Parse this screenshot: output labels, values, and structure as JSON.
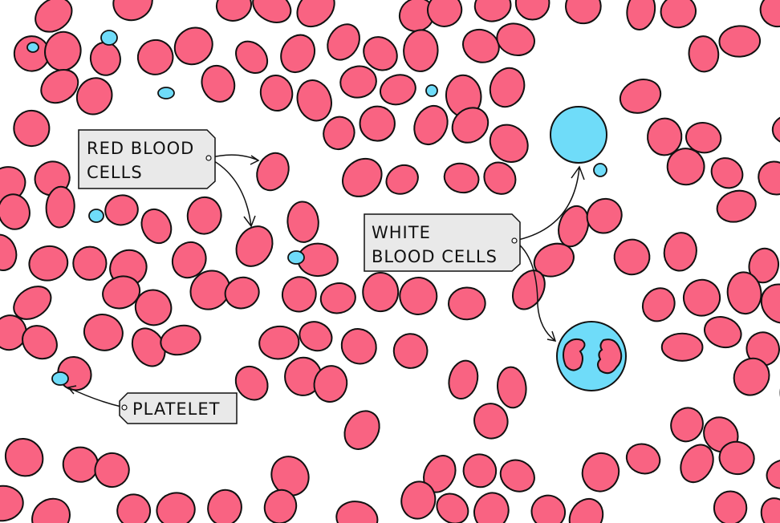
{
  "labels": {
    "red_blood_cells_line1": "RED  BLOOD",
    "red_blood_cells_line2": "CELLS",
    "white_blood_cells_line1": "WHITE",
    "white_blood_cells_line2": "BLOOD  CELLS",
    "platelet": "PLATELET"
  },
  "colors": {
    "red_blood_cell": "#f96382",
    "white_blood_cell": "#6fdcf9",
    "platelet": "#6fdcf9",
    "label_box": "#e9e9e9",
    "outline": "#111111"
  }
}
